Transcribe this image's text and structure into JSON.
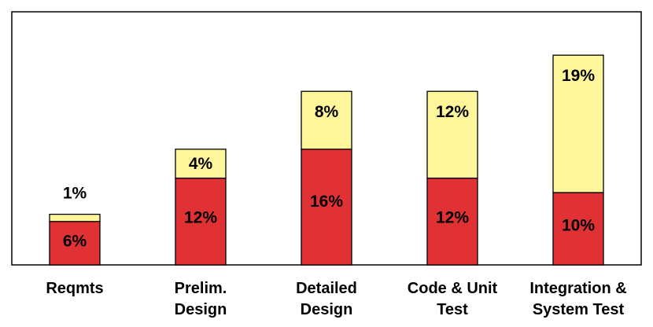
{
  "chart_data": {
    "type": "bar",
    "stacked": true,
    "categories": [
      [
        "Reqmts"
      ],
      [
        "Prelim.",
        "Design"
      ],
      [
        "Detailed",
        "Design"
      ],
      [
        "Code & Unit",
        "Test"
      ],
      [
        "Integration &",
        "System Test"
      ]
    ],
    "series": [
      {
        "color": "#e03234",
        "values": [
          6,
          12,
          16,
          12,
          10
        ],
        "labels": [
          "6%",
          "12%",
          "16%",
          "12%",
          "10%"
        ]
      },
      {
        "color": "#fff59a",
        "values": [
          1,
          4,
          8,
          12,
          19
        ],
        "labels": [
          "1%",
          "4%",
          "8%",
          "12%",
          "19%"
        ]
      }
    ],
    "ylim": [
      0,
      35
    ],
    "grid": false,
    "legend": "none",
    "colors": {
      "frame": "#000000",
      "outline": "#000000",
      "background": "#ffffff"
    }
  }
}
